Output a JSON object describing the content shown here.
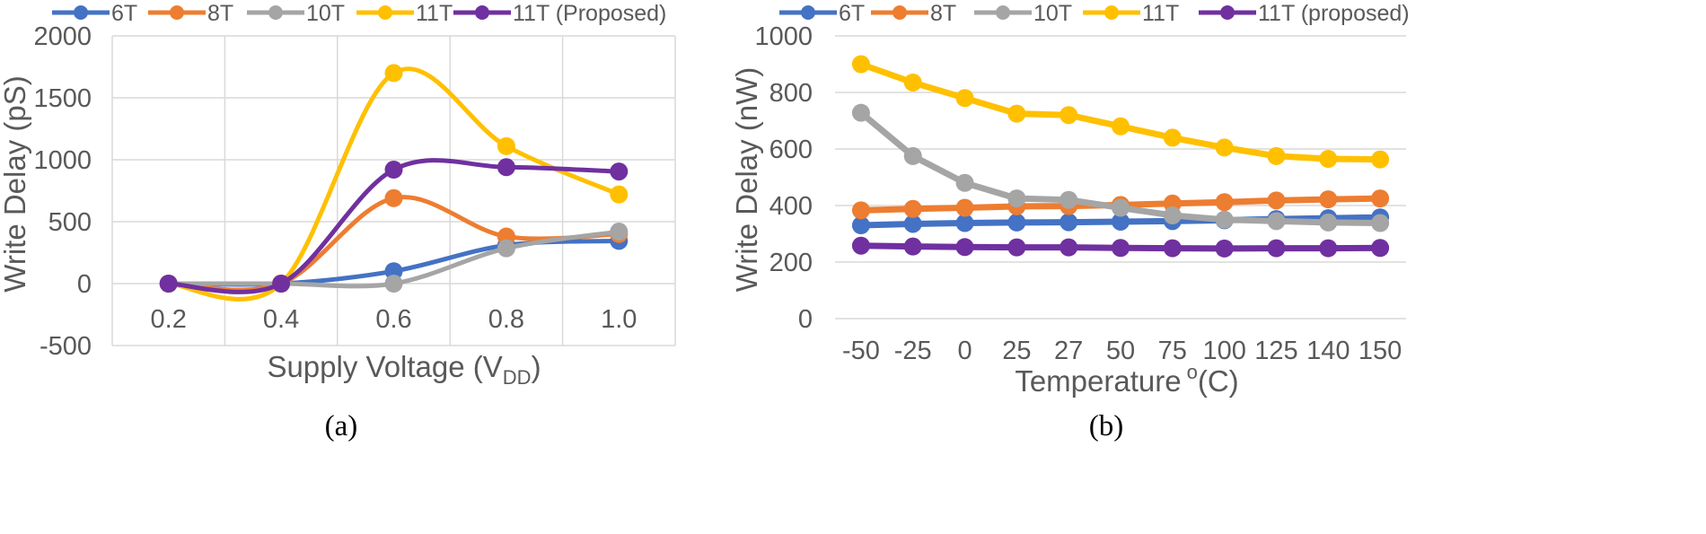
{
  "chart_data": [
    {
      "type": "line",
      "panel_label": "(a)",
      "smooth": true,
      "categories": [
        "0.2",
        "0.4",
        "0.6",
        "0.8",
        "1.0"
      ],
      "xlabel": "Supply Voltage (V",
      "xlabel_sub": "DD",
      "xlabel_end": ")",
      "ylabel": "Write Delay (pS)",
      "ylim": [
        -500,
        2000
      ],
      "yticks": [
        -500,
        0,
        500,
        1000,
        1500,
        2000
      ],
      "ytick_labels": [
        "-500",
        "0",
        "500",
        "1000",
        "1500",
        "2000"
      ],
      "grid": true,
      "legend_position": "top",
      "series": [
        {
          "name": "6T",
          "color": "#4472C4",
          "values": [
            0,
            0,
            100,
            310,
            345
          ]
        },
        {
          "name": "8T",
          "color": "#ED7D31",
          "values": [
            0,
            0,
            690,
            380,
            400
          ]
        },
        {
          "name": "10T",
          "color": "#A5A5A5",
          "values": [
            0,
            0,
            0,
            285,
            420
          ]
        },
        {
          "name": "11T",
          "color": "#FFC000",
          "values": [
            0,
            0,
            1700,
            1110,
            720
          ]
        },
        {
          "name": "11T (Proposed)",
          "color": "#7030A0",
          "values": [
            0,
            0,
            920,
            940,
            905
          ]
        }
      ]
    },
    {
      "type": "line",
      "panel_label": "(b)",
      "smooth": false,
      "categories": [
        "-50",
        "-25",
        "0",
        "25",
        "27",
        "50",
        "75",
        "100",
        "125",
        "140",
        "150"
      ],
      "xlabel": "Temperature",
      "xlabel_sup": "o",
      "xlabel_end": "(C)",
      "ylabel": "Write Delay (nW)",
      "ylim": [
        0,
        1000
      ],
      "yticks": [
        0,
        200,
        400,
        600,
        800,
        1000
      ],
      "ytick_labels": [
        "0",
        "200",
        "400",
        "600",
        "800",
        "1000"
      ],
      "grid": true,
      "legend_position": "top",
      "series": [
        {
          "name": "6T",
          "color": "#4472C4",
          "values": [
            330,
            335,
            338,
            340,
            341,
            343,
            345,
            348,
            352,
            355,
            358
          ]
        },
        {
          "name": "8T",
          "color": "#ED7D31",
          "values": [
            383,
            388,
            392,
            397,
            398,
            402,
            407,
            412,
            418,
            422,
            425
          ]
        },
        {
          "name": "10T",
          "color": "#A5A5A5",
          "values": [
            728,
            575,
            480,
            425,
            420,
            392,
            365,
            350,
            345,
            340,
            338
          ]
        },
        {
          "name": "11T",
          "color": "#FFC000",
          "values": [
            900,
            835,
            780,
            725,
            720,
            680,
            640,
            605,
            575,
            565,
            563
          ]
        },
        {
          "name": "11T (proposed)",
          "color": "#7030A0",
          "values": [
            258,
            255,
            253,
            252,
            252,
            250,
            249,
            248,
            249,
            249,
            250
          ]
        }
      ]
    }
  ]
}
